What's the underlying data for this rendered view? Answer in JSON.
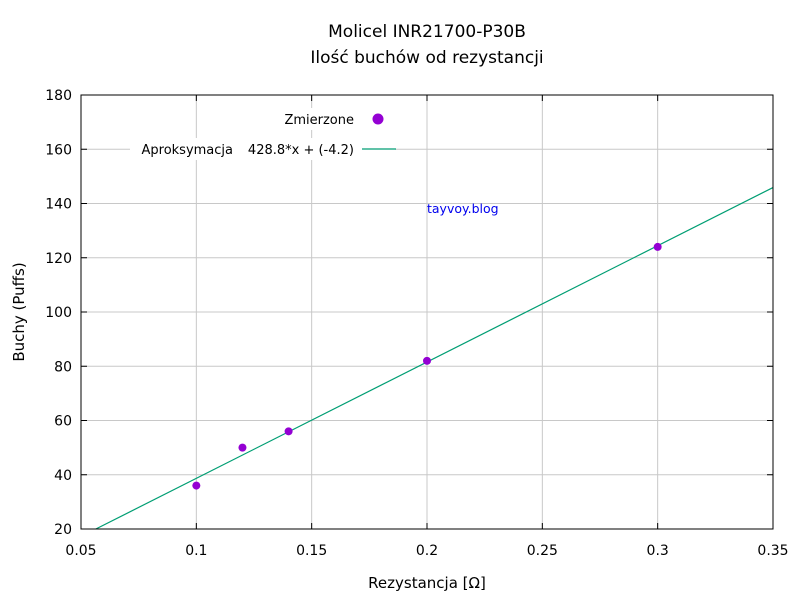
{
  "chart_data": {
    "type": "scatter",
    "title": "Molicel INR21700-P30B",
    "subtitle": "Ilość buchów od rezystancji",
    "xlabel": "Rezystancja [Ω]",
    "ylabel": "Buchy (Puffs)",
    "xlim": [
      0.05,
      0.35
    ],
    "ylim": [
      20,
      180
    ],
    "xticks": [
      0.05,
      0.1,
      0.15,
      0.2,
      0.25,
      0.3,
      0.35
    ],
    "yticks": [
      20,
      40,
      60,
      80,
      100,
      120,
      140,
      160,
      180
    ],
    "grid": true,
    "legend_position": "top",
    "annotation": "tayvoy.blog",
    "series": [
      {
        "name": "Zmierzone",
        "kind": "points",
        "color": "#9400d3",
        "x": [
          0.1,
          0.12,
          0.14,
          0.2,
          0.3
        ],
        "y": [
          36,
          50,
          56,
          82,
          124
        ]
      },
      {
        "name": "Aproksymacja",
        "kind": "line",
        "color": "#009e73",
        "equation_label": "428.8*x + (-4.2)",
        "slope": 428.8,
        "intercept": -4.2
      }
    ]
  }
}
